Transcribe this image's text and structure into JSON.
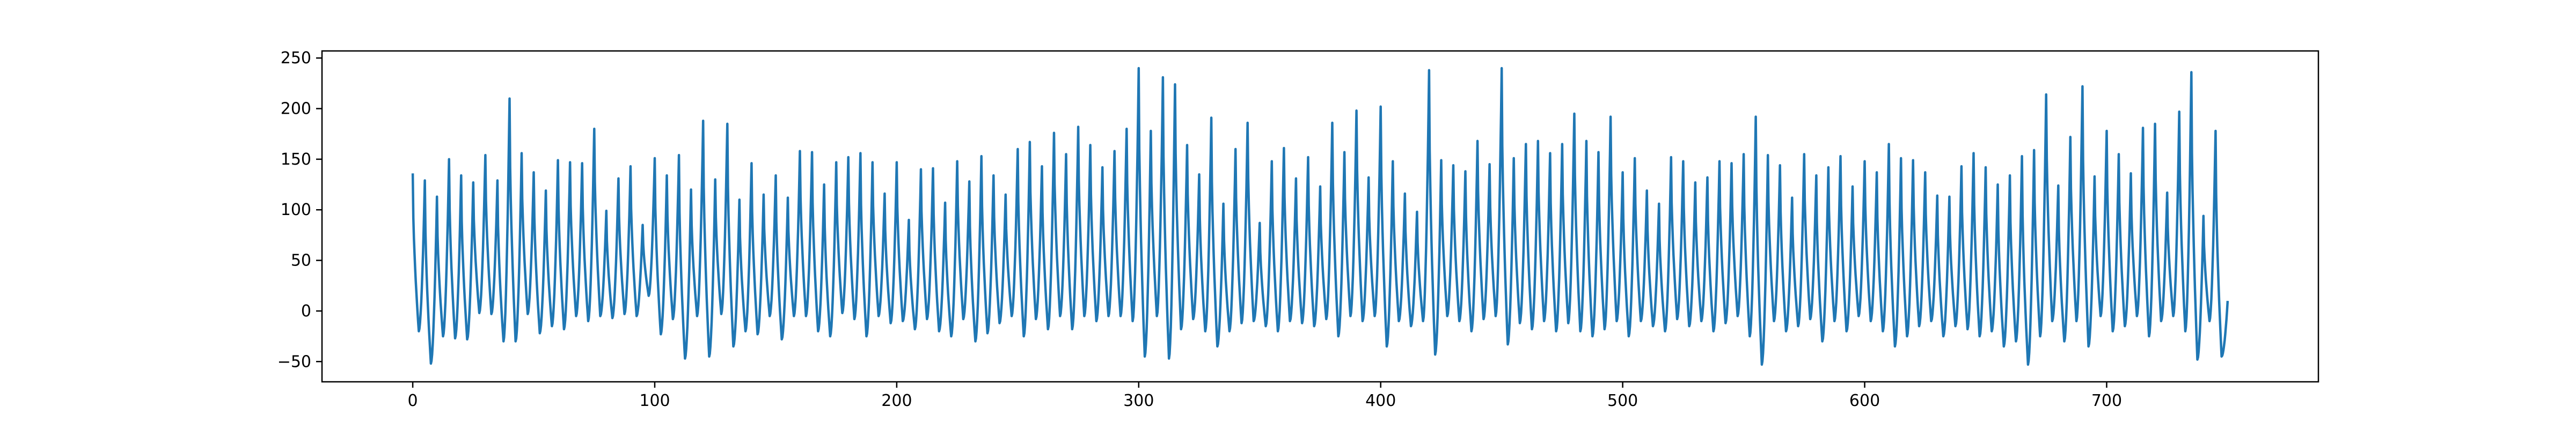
{
  "chart_data": {
    "type": "line",
    "title": "",
    "xlabel": "",
    "ylabel": "",
    "xlim": [
      -37.5,
      787.5
    ],
    "ylim": [
      -70,
      257
    ],
    "x_ticks": [
      0,
      100,
      200,
      300,
      400,
      500,
      600,
      700
    ],
    "y_ticks": [
      -50,
      0,
      50,
      100,
      150,
      200,
      250
    ],
    "grid": false,
    "legend": "none",
    "series_color": "#1f77b4",
    "n_points": 751,
    "peaks": [
      [
        0,
        136
      ],
      [
        5,
        129
      ],
      [
        10,
        113
      ],
      [
        15,
        150
      ],
      [
        20,
        134
      ],
      [
        25,
        127
      ],
      [
        30,
        154
      ],
      [
        35,
        129
      ],
      [
        40,
        210
      ],
      [
        45,
        156
      ],
      [
        50,
        137
      ],
      [
        55,
        119
      ],
      [
        60,
        149
      ],
      [
        65,
        147
      ],
      [
        70,
        146
      ],
      [
        75,
        180
      ],
      [
        80,
        99
      ],
      [
        85,
        131
      ],
      [
        90,
        143
      ],
      [
        95,
        85
      ],
      [
        100,
        151
      ],
      [
        105,
        134
      ],
      [
        110,
        154
      ],
      [
        115,
        120
      ],
      [
        120,
        188
      ],
      [
        125,
        130
      ],
      [
        130,
        185
      ],
      [
        135,
        110
      ],
      [
        140,
        146
      ],
      [
        145,
        115
      ],
      [
        150,
        134
      ],
      [
        155,
        112
      ],
      [
        160,
        158
      ],
      [
        165,
        157
      ],
      [
        170,
        125
      ],
      [
        175,
        147
      ],
      [
        180,
        152
      ],
      [
        185,
        156
      ],
      [
        190,
        147
      ],
      [
        195,
        116
      ],
      [
        200,
        147
      ],
      [
        205,
        90
      ],
      [
        210,
        140
      ],
      [
        215,
        141
      ],
      [
        220,
        107
      ],
      [
        225,
        148
      ],
      [
        230,
        128
      ],
      [
        235,
        153
      ],
      [
        240,
        134
      ],
      [
        245,
        115
      ],
      [
        250,
        160
      ],
      [
        255,
        167
      ],
      [
        260,
        143
      ],
      [
        265,
        176
      ],
      [
        270,
        155
      ],
      [
        275,
        182
      ],
      [
        280,
        164
      ],
      [
        285,
        142
      ],
      [
        290,
        158
      ],
      [
        295,
        180
      ],
      [
        300,
        240
      ],
      [
        305,
        178
      ],
      [
        310,
        231
      ],
      [
        315,
        224
      ],
      [
        320,
        164
      ],
      [
        325,
        135
      ],
      [
        330,
        191
      ],
      [
        335,
        106
      ],
      [
        340,
        160
      ],
      [
        345,
        186
      ],
      [
        350,
        87
      ],
      [
        355,
        148
      ],
      [
        360,
        161
      ],
      [
        365,
        131
      ],
      [
        370,
        152
      ],
      [
        375,
        123
      ],
      [
        380,
        186
      ],
      [
        385,
        157
      ],
      [
        390,
        198
      ],
      [
        395,
        132
      ],
      [
        400,
        202
      ],
      [
        405,
        148
      ],
      [
        410,
        116
      ],
      [
        415,
        98
      ],
      [
        420,
        238
      ],
      [
        425,
        149
      ],
      [
        430,
        144
      ],
      [
        435,
        138
      ],
      [
        440,
        168
      ],
      [
        445,
        145
      ],
      [
        450,
        240
      ],
      [
        455,
        151
      ],
      [
        460,
        165
      ],
      [
        465,
        168
      ],
      [
        470,
        156
      ],
      [
        475,
        165
      ],
      [
        480,
        195
      ],
      [
        485,
        168
      ],
      [
        490,
        157
      ],
      [
        495,
        192
      ],
      [
        500,
        137
      ],
      [
        505,
        151
      ],
      [
        510,
        119
      ],
      [
        515,
        106
      ],
      [
        520,
        152
      ],
      [
        525,
        148
      ],
      [
        530,
        127
      ],
      [
        535,
        132
      ],
      [
        540,
        148
      ],
      [
        545,
        146
      ],
      [
        550,
        155
      ],
      [
        555,
        192
      ],
      [
        560,
        154
      ],
      [
        565,
        144
      ],
      [
        570,
        112
      ],
      [
        575,
        155
      ],
      [
        580,
        134
      ],
      [
        585,
        142
      ],
      [
        590,
        153
      ],
      [
        595,
        123
      ],
      [
        600,
        148
      ],
      [
        605,
        137
      ],
      [
        610,
        165
      ],
      [
        615,
        151
      ],
      [
        620,
        149
      ],
      [
        625,
        137
      ],
      [
        630,
        114
      ],
      [
        635,
        113
      ],
      [
        640,
        143
      ],
      [
        645,
        156
      ],
      [
        650,
        142
      ],
      [
        655,
        125
      ],
      [
        660,
        134
      ],
      [
        665,
        153
      ],
      [
        670,
        159
      ],
      [
        675,
        214
      ],
      [
        680,
        124
      ],
      [
        685,
        172
      ],
      [
        690,
        222
      ],
      [
        695,
        133
      ],
      [
        700,
        178
      ],
      [
        705,
        155
      ],
      [
        710,
        136
      ],
      [
        715,
        181
      ],
      [
        720,
        185
      ],
      [
        725,
        117
      ],
      [
        730,
        197
      ],
      [
        735,
        236
      ],
      [
        740,
        94
      ],
      [
        745,
        178
      ],
      [
        750,
        10
      ]
    ],
    "troughs": [
      [
        2.5,
        -20
      ],
      [
        7.5,
        -52
      ],
      [
        12.5,
        -25
      ],
      [
        17.5,
        -27
      ],
      [
        22.5,
        -28
      ],
      [
        27.5,
        -2
      ],
      [
        32.5,
        -3
      ],
      [
        37.5,
        -30
      ],
      [
        42.5,
        -30
      ],
      [
        47.5,
        -3
      ],
      [
        52.5,
        -22
      ],
      [
        57.5,
        -15
      ],
      [
        62.5,
        -18
      ],
      [
        67.5,
        -5
      ],
      [
        72.5,
        -10
      ],
      [
        77.5,
        -5
      ],
      [
        82.5,
        -7
      ],
      [
        87.5,
        -3
      ],
      [
        92.5,
        -5
      ],
      [
        97.5,
        15
      ],
      [
        102.5,
        -23
      ],
      [
        107.5,
        -8
      ],
      [
        112.5,
        -47
      ],
      [
        117.5,
        -5
      ],
      [
        122.5,
        -45
      ],
      [
        127.5,
        -3
      ],
      [
        132.5,
        -35
      ],
      [
        137.5,
        -20
      ],
      [
        142.5,
        -23
      ],
      [
        147.5,
        -5
      ],
      [
        152.5,
        -28
      ],
      [
        157.5,
        -5
      ],
      [
        162.5,
        -5
      ],
      [
        167.5,
        -20
      ],
      [
        172.5,
        -25
      ],
      [
        177.5,
        -2
      ],
      [
        182.5,
        -8
      ],
      [
        187.5,
        -25
      ],
      [
        192.5,
        -5
      ],
      [
        197.5,
        -12
      ],
      [
        202.5,
        -10
      ],
      [
        207.5,
        -18
      ],
      [
        212.5,
        -8
      ],
      [
        217.5,
        -20
      ],
      [
        222.5,
        -25
      ],
      [
        227.5,
        -8
      ],
      [
        232.5,
        -30
      ],
      [
        237.5,
        -22
      ],
      [
        242.5,
        -12
      ],
      [
        247.5,
        -5
      ],
      [
        252.5,
        -25
      ],
      [
        257.5,
        -8
      ],
      [
        262.5,
        -18
      ],
      [
        267.5,
        -5
      ],
      [
        272.5,
        -18
      ],
      [
        277.5,
        -5
      ],
      [
        282.5,
        -10
      ],
      [
        287.5,
        -5
      ],
      [
        292.5,
        -5
      ],
      [
        297.5,
        -10
      ],
      [
        302.5,
        -45
      ],
      [
        307.5,
        -5
      ],
      [
        312.5,
        -47
      ],
      [
        317.5,
        -18
      ],
      [
        322.5,
        -8
      ],
      [
        327.5,
        -20
      ],
      [
        332.5,
        -35
      ],
      [
        337.5,
        -20
      ],
      [
        342.5,
        -12
      ],
      [
        347.5,
        -10
      ],
      [
        352.5,
        -15
      ],
      [
        357.5,
        -20
      ],
      [
        362.5,
        -10
      ],
      [
        367.5,
        -12
      ],
      [
        372.5,
        -15
      ],
      [
        377.5,
        -8
      ],
      [
        382.5,
        -25
      ],
      [
        387.5,
        -5
      ],
      [
        392.5,
        -10
      ],
      [
        397.5,
        -5
      ],
      [
        402.5,
        -35
      ],
      [
        407.5,
        -10
      ],
      [
        412.5,
        -15
      ],
      [
        417.5,
        -10
      ],
      [
        422.5,
        -43
      ],
      [
        427.5,
        -5
      ],
      [
        432.5,
        -10
      ],
      [
        437.5,
        -20
      ],
      [
        442.5,
        -8
      ],
      [
        447.5,
        -5
      ],
      [
        452.5,
        -33
      ],
      [
        457.5,
        -12
      ],
      [
        462.5,
        -18
      ],
      [
        467.5,
        -10
      ],
      [
        472.5,
        -20
      ],
      [
        477.5,
        -12
      ],
      [
        482.5,
        -20
      ],
      [
        487.5,
        -25
      ],
      [
        492.5,
        -18
      ],
      [
        497.5,
        -10
      ],
      [
        502.5,
        -25
      ],
      [
        507.5,
        -10
      ],
      [
        512.5,
        -15
      ],
      [
        517.5,
        -20
      ],
      [
        522.5,
        -8
      ],
      [
        527.5,
        -15
      ],
      [
        532.5,
        -10
      ],
      [
        537.5,
        -20
      ],
      [
        542.5,
        -12
      ],
      [
        547.5,
        -5
      ],
      [
        552.5,
        -25
      ],
      [
        557.5,
        -53
      ],
      [
        562.5,
        -10
      ],
      [
        567.5,
        -20
      ],
      [
        572.5,
        -15
      ],
      [
        577.5,
        -8
      ],
      [
        582.5,
        -30
      ],
      [
        587.5,
        -10
      ],
      [
        592.5,
        -20
      ],
      [
        597.5,
        -5
      ],
      [
        602.5,
        -10
      ],
      [
        607.5,
        -20
      ],
      [
        612.5,
        -35
      ],
      [
        617.5,
        -25
      ],
      [
        622.5,
        -15
      ],
      [
        627.5,
        -10
      ],
      [
        632.5,
        -25
      ],
      [
        637.5,
        -15
      ],
      [
        642.5,
        -18
      ],
      [
        647.5,
        -25
      ],
      [
        652.5,
        -20
      ],
      [
        657.5,
        -35
      ],
      [
        662.5,
        -30
      ],
      [
        667.5,
        -53
      ],
      [
        672.5,
        -25
      ],
      [
        677.5,
        -10
      ],
      [
        682.5,
        -30
      ],
      [
        687.5,
        -10
      ],
      [
        692.5,
        -35
      ],
      [
        697.5,
        -5
      ],
      [
        702.5,
        -20
      ],
      [
        707.5,
        -15
      ],
      [
        712.5,
        -5
      ],
      [
        717.5,
        -25
      ],
      [
        722.5,
        -10
      ],
      [
        727.5,
        -5
      ],
      [
        732.5,
        -20
      ],
      [
        737.5,
        -48
      ],
      [
        742.5,
        -10
      ],
      [
        747.5,
        -45
      ]
    ]
  }
}
